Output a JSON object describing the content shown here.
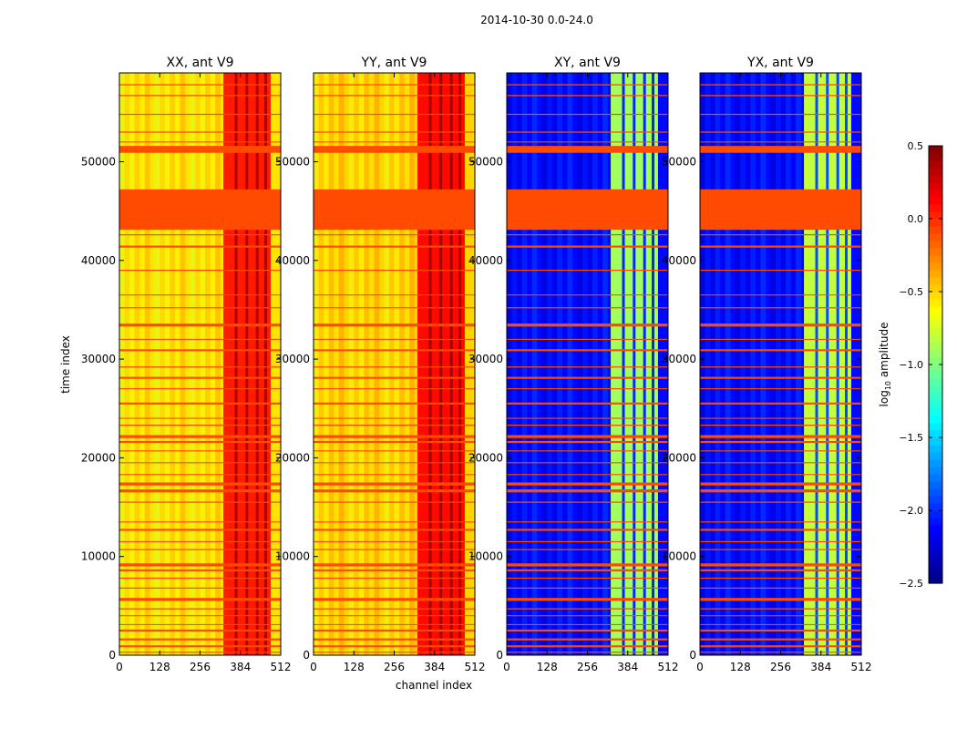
{
  "figure": {
    "suptitle": "2014-10-30 0.0-24.0"
  },
  "chart_data": {
    "type": "heatmap",
    "xlabel": "channel index",
    "ylabel": "time index",
    "xlim": [
      0,
      512
    ],
    "ylim": [
      0,
      59000
    ],
    "xticks": [
      0,
      128,
      256,
      384,
      512
    ],
    "yticks": [
      0,
      10000,
      20000,
      30000,
      40000,
      50000
    ],
    "flag_color": "#ff4b00",
    "panels": [
      {
        "title": "XX, ant V9",
        "kind": "parallel",
        "base_value": -0.55,
        "band_value": 0.05
      },
      {
        "title": "YY, ant V9",
        "kind": "parallel",
        "base_value": -0.5,
        "band_value": 0.1
      },
      {
        "title": "XY, ant V9",
        "kind": "cross",
        "base_value": -2.1,
        "band_value": -0.9
      },
      {
        "title": "YX, ant V9",
        "kind": "cross",
        "base_value": -2.1,
        "band_value": -0.8
      }
    ],
    "bright_band_channels": [
      330,
      480
    ],
    "stripe_channels": [
      366,
      400,
      433,
      460
    ],
    "flagged_rows": [
      {
        "from": 50900,
        "to": 51600
      },
      {
        "from": 43100,
        "to": 47200
      },
      {
        "from": 41300,
        "to": 41500
      },
      {
        "from": 33300,
        "to": 33600
      },
      {
        "from": 30800,
        "to": 31000
      },
      {
        "from": 28000,
        "to": 28200
      },
      {
        "from": 25400,
        "to": 25600
      },
      {
        "from": 22000,
        "to": 22300
      },
      {
        "from": 21500,
        "to": 21700
      },
      {
        "from": 17200,
        "to": 17500
      },
      {
        "from": 16500,
        "to": 16800
      },
      {
        "from": 12600,
        "to": 12800
      },
      {
        "from": 9000,
        "to": 9300
      },
      {
        "from": 8500,
        "to": 8700
      },
      {
        "from": 5500,
        "to": 5800
      },
      {
        "from": 2400,
        "to": 2600
      },
      {
        "from": 1500,
        "to": 1700
      },
      {
        "from": 800,
        "to": 1000
      }
    ],
    "thin_lines": [
      57800,
      56700,
      54800,
      53000,
      52000,
      42600,
      39000,
      36500,
      35200,
      32000,
      29200,
      27000,
      24000,
      23300,
      20700,
      19500,
      18300,
      15500,
      13500,
      11500,
      10700,
      7800,
      6800,
      4700,
      4000,
      3100,
      300
    ],
    "colorbar": {
      "label": "log10 amplitude",
      "label_base": "log",
      "label_sub": "10",
      "label_rest": " amplitude",
      "range": [
        -2.5,
        0.5
      ],
      "ticks": [
        0.5,
        0.0,
        -0.5,
        -1.0,
        -1.5,
        -2.0,
        -2.5
      ],
      "tick_labels": [
        "0.5",
        "0.0",
        "−0.5",
        "−1.0",
        "−1.5",
        "−2.0",
        "−2.5"
      ],
      "colormap": "jet"
    }
  }
}
